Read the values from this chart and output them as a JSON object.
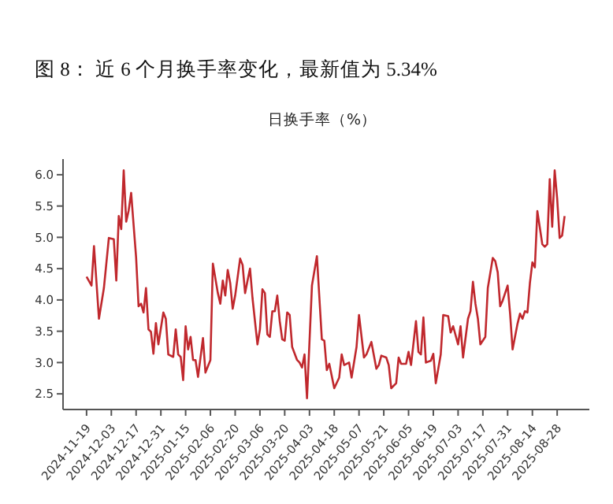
{
  "chart_data": {
    "type": "line",
    "title": "图 8：  近 6 个月换手率变化，最新值为 5.34%",
    "subtitle": "日换手率（%）",
    "categories": [
      "2024-11-19",
      null,
      null,
      null,
      null,
      null,
      null,
      null,
      null,
      null,
      "2024-12-03",
      null,
      null,
      null,
      null,
      null,
      null,
      null,
      null,
      null,
      "2024-12-17",
      null,
      null,
      null,
      null,
      null,
      null,
      null,
      null,
      null,
      "2024-12-31",
      null,
      null,
      null,
      null,
      null,
      null,
      null,
      null,
      null,
      "2025-01-15",
      null,
      null,
      null,
      null,
      null,
      null,
      null,
      null,
      null,
      "2025-02-06",
      null,
      null,
      null,
      null,
      null,
      null,
      null,
      null,
      null,
      "2025-02-20",
      null,
      null,
      null,
      null,
      null,
      null,
      null,
      null,
      null,
      "2025-03-06",
      null,
      null,
      null,
      null,
      null,
      null,
      null,
      null,
      null,
      "2025-03-20",
      null,
      null,
      null,
      null,
      null,
      null,
      null,
      null,
      null,
      "2025-04-03",
      null,
      null,
      null,
      null,
      null,
      null,
      null,
      null,
      null,
      "2025-04-18",
      null,
      null,
      null,
      null,
      null,
      null,
      null,
      null,
      null,
      "2025-05-07",
      null,
      null,
      null,
      null,
      null,
      null,
      null,
      null,
      null,
      "2025-05-21",
      null,
      null,
      null,
      null,
      null,
      null,
      null,
      null,
      null,
      "2025-06-05",
      null,
      null,
      null,
      null,
      null,
      null,
      null,
      null,
      null,
      "2025-06-19",
      null,
      null,
      null,
      null,
      null,
      null,
      null,
      null,
      null,
      "2025-07-03",
      null,
      null,
      null,
      null,
      null,
      null,
      null,
      null,
      null,
      "2025-07-17",
      null,
      null,
      null,
      null,
      null,
      null,
      null,
      null,
      null,
      "2025-07-31",
      null,
      null,
      null,
      null,
      null,
      null,
      null,
      null,
      null,
      "2025-08-14",
      null,
      null,
      null,
      null,
      null,
      null,
      null,
      null,
      null,
      "2025-08-28",
      null,
      null,
      null
    ],
    "series": [
      {
        "color": "#c0282d",
        "values": [
          4.37,
          null,
          4.23,
          4.86,
          null,
          3.7,
          null,
          4.19,
          null,
          4.99,
          null,
          4.97,
          4.31,
          5.34,
          5.13,
          6.07,
          5.25,
          5.43,
          5.71,
          null,
          4.68,
          3.9,
          3.94,
          3.8,
          4.19,
          3.53,
          3.49,
          3.14,
          3.63,
          3.29,
          null,
          3.8,
          3.7,
          3.13,
          null,
          3.09,
          3.53,
          3.13,
          3.09,
          2.72,
          3.58,
          3.21,
          3.41,
          3.04,
          3.04,
          2.77,
          null,
          3.39,
          2.84,
          null,
          3.04,
          4.58,
          null,
          4.11,
          3.94,
          4.31,
          4.07,
          4.48,
          4.27,
          3.86,
          4.07,
          null,
          4.66,
          4.56,
          4.11,
          4.31,
          4.5,
          4.03,
          null,
          3.29,
          3.53,
          4.17,
          4.11,
          3.45,
          3.41,
          3.82,
          3.82,
          4.07,
          3.66,
          3.37,
          3.35,
          3.8,
          3.76,
          3.25,
          null,
          3.04,
          3.0,
          2.92,
          3.13,
          2.43,
          null,
          4.23,
          null,
          4.7,
          null,
          3.37,
          3.35,
          2.88,
          2.98,
          null,
          2.59,
          null,
          2.76,
          3.13,
          2.96,
          null,
          3.0,
          2.76,
          null,
          3.25,
          3.76,
          null,
          3.08,
          3.13,
          null,
          3.33,
          null,
          2.9,
          2.96,
          3.11,
          null,
          3.08,
          2.96,
          2.59,
          null,
          2.67,
          3.08,
          2.98,
          null,
          2.98,
          3.17,
          2.96,
          null,
          3.66,
          3.17,
          3.13,
          3.72,
          3.0,
          null,
          3.03,
          3.14,
          2.67,
          null,
          3.13,
          3.76,
          null,
          3.74,
          3.48,
          3.58,
          null,
          3.29,
          3.58,
          3.08,
          null,
          3.7,
          3.82,
          4.29,
          3.94,
          3.7,
          3.29,
          null,
          3.41,
          4.19,
          null,
          4.67,
          4.62,
          4.44,
          3.9,
          3.99,
          null,
          4.23,
          3.78,
          3.21,
          null,
          3.62,
          3.78,
          3.7,
          3.82,
          3.8,
          4.27,
          4.6,
          4.52,
          5.42,
          null,
          4.89,
          4.85,
          4.89,
          5.93,
          5.17,
          6.07,
          5.62,
          4.99,
          5.03,
          5.34
        ]
      }
    ],
    "ylim": [
      2.25,
      6.25
    ],
    "yticks": [
      2.5,
      {
        "value": 3,
        "label": "3.0"
      },
      3.5,
      {
        "value": 4,
        "label": "4.0"
      },
      4.5,
      {
        "value": 5,
        "label": "5.0"
      },
      5.5,
      {
        "value": 6,
        "label": "6.0"
      }
    ],
    "grid": false,
    "legend": false,
    "marker": "none",
    "line_style": "solid"
  }
}
